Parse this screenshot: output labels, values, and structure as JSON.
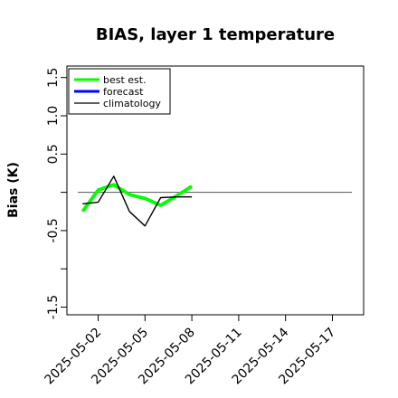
{
  "chart_data": {
    "type": "line",
    "title": "BIAS, layer 1 temperature",
    "xlabel": "",
    "ylabel": "Bias (K)",
    "ylim": [
      -1.6,
      1.65
    ],
    "y_ticks": [
      -1.5,
      -1.0,
      -0.5,
      0.0,
      0.5,
      1.0,
      1.5
    ],
    "y_tick_labels": [
      "-1.5",
      "",
      "-0.5",
      "",
      "0.5",
      "1.0",
      "1.5"
    ],
    "x_tick_labels": [
      "2025-05-02",
      "2025-05-05",
      "2025-05-08",
      "2025-05-11",
      "2025-05-14",
      "2025-05-17"
    ],
    "x_highlight_label": "2025-05-08",
    "x_highlight_color": "#228B22",
    "xlim": [
      "2025-04-30",
      "2025-05-19"
    ],
    "zero_line": true,
    "grid": false,
    "legend_placement": "top-left",
    "series": [
      {
        "name": "best est.",
        "color": "#00ff00",
        "x": [
          "2025-05-01",
          "2025-05-02",
          "2025-05-03",
          "2025-05-04",
          "2025-05-05",
          "2025-05-06",
          "2025-05-07",
          "2025-05-08"
        ],
        "values": [
          -0.25,
          0.03,
          0.1,
          -0.03,
          -0.08,
          -0.17,
          -0.05,
          0.08
        ]
      },
      {
        "name": "forecast",
        "color": "#0000ff",
        "x": [],
        "values": []
      },
      {
        "name": "climatology",
        "color": "#000000",
        "x": [
          "2025-05-01",
          "2025-05-02",
          "2025-05-03",
          "2025-05-04",
          "2025-05-05",
          "2025-05-06",
          "2025-05-07",
          "2025-05-08"
        ],
        "values": [
          -0.15,
          -0.13,
          0.21,
          -0.25,
          -0.44,
          -0.07,
          -0.06,
          -0.06
        ]
      }
    ]
  }
}
